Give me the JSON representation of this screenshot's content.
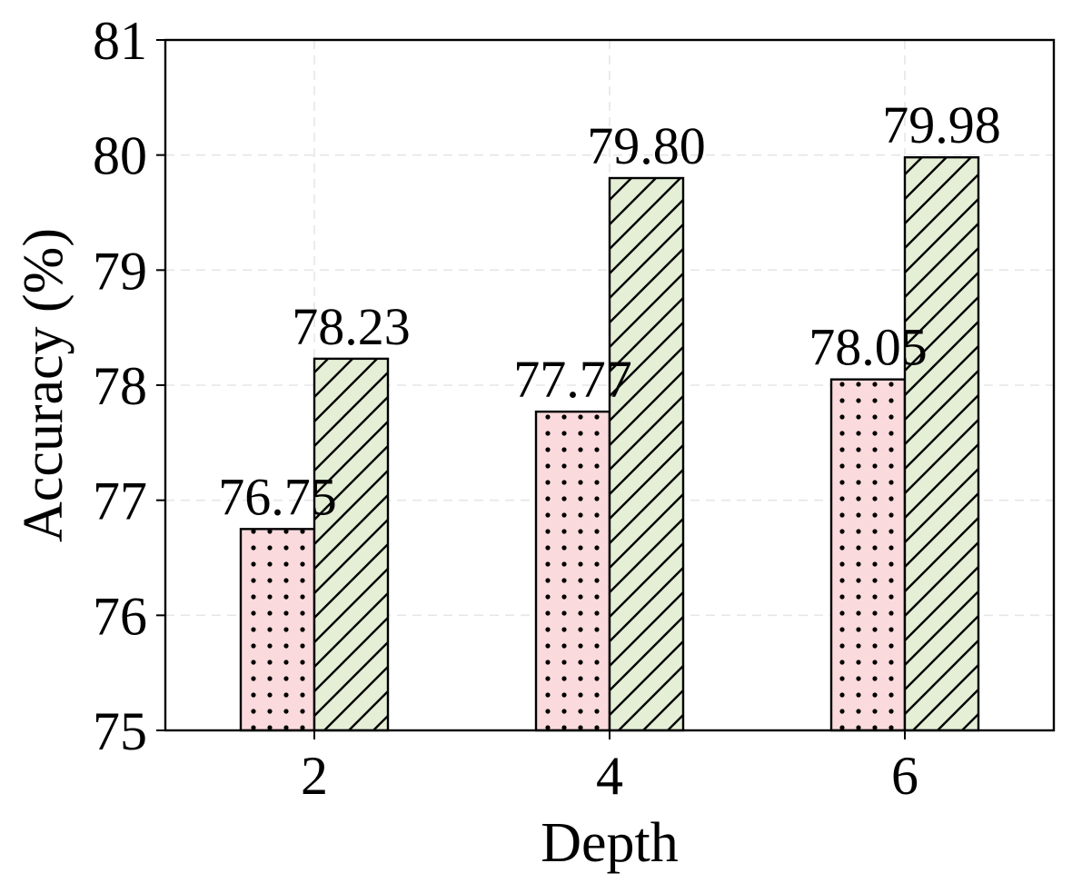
{
  "chart_data": {
    "type": "bar",
    "title": "",
    "xlabel": "Depth",
    "ylabel": "Accuracy (%)",
    "categories": [
      "2",
      "4",
      "6"
    ],
    "ylim": [
      75,
      81
    ],
    "yticks": [
      "75",
      "76",
      "77",
      "78",
      "79",
      "80",
      "81"
    ],
    "grid": true,
    "legend": "none",
    "series": [
      {
        "values": [
          76.75,
          77.77,
          78.05
        ],
        "labels": [
          "76.75",
          "77.77",
          "78.05"
        ],
        "color": "#fadadd",
        "hatch": "dots"
      },
      {
        "values": [
          78.23,
          79.8,
          79.98
        ],
        "labels": [
          "78.23",
          "79.80",
          "79.98"
        ],
        "color": "#e4efd6",
        "hatch": "diagonal"
      }
    ]
  }
}
